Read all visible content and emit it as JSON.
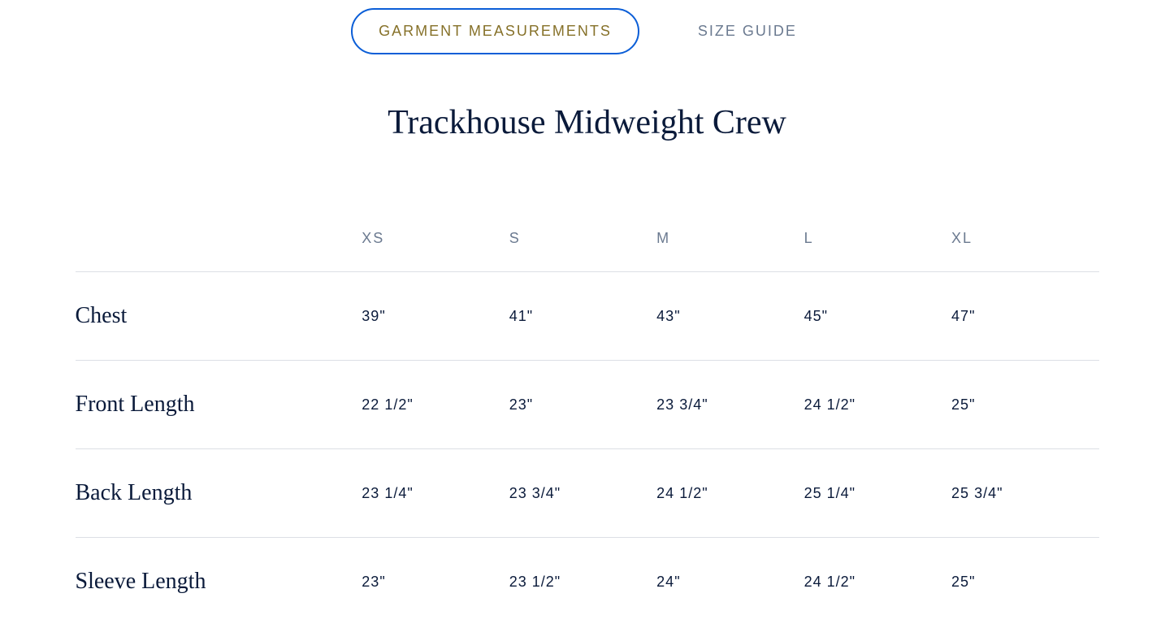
{
  "tabs": {
    "active": "GARMENT MEASUREMENTS",
    "inactive": "SIZE GUIDE"
  },
  "title": "Trackhouse Midweight Crew",
  "table": {
    "columns": [
      "",
      "XS",
      "S",
      "M",
      "L",
      "XL"
    ],
    "rows": [
      {
        "label": "Chest",
        "values": [
          "39\"",
          "41\"",
          "43\"",
          "45\"",
          "47\""
        ]
      },
      {
        "label": "Front Length",
        "values": [
          "22 1/2\"",
          "23\"",
          "23 3/4\"",
          "24 1/2\"",
          "25\""
        ]
      },
      {
        "label": "Back Length",
        "values": [
          "23 1/4\"",
          "23 3/4\"",
          "24 1/2\"",
          "25 1/4\"",
          "25 3/4\""
        ]
      },
      {
        "label": "Sleeve Length",
        "values": [
          "23\"",
          "23 1/2\"",
          "24\"",
          "24 1/2\"",
          "25\""
        ]
      }
    ],
    "border_color": "#dcdfe5",
    "header_color": "#6b7a90",
    "row_label_color": "#0a1a3a",
    "cell_color": "#0a1a3a"
  },
  "styling": {
    "background_color": "#ffffff",
    "active_tab_border": "#0b5ed7",
    "active_tab_text": "#867129",
    "inactive_tab_text": "#6b7a90",
    "title_color": "#0a1a3a",
    "title_fontsize": 42,
    "tab_fontsize": 18,
    "header_fontsize": 18,
    "row_label_fontsize": 28,
    "cell_fontsize": 18
  }
}
